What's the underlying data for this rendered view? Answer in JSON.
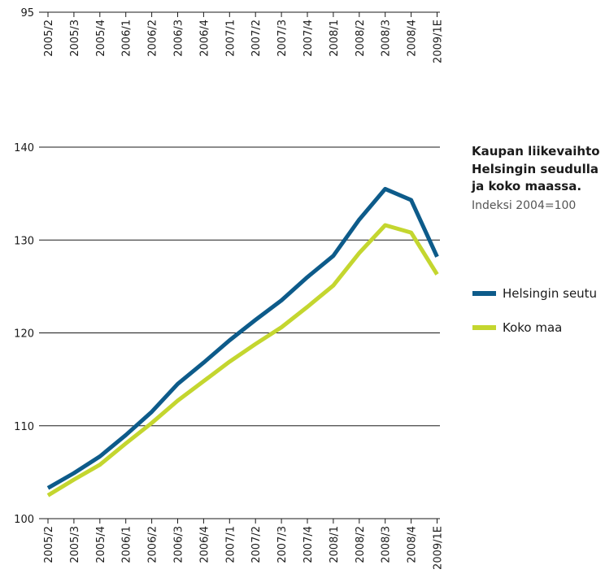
{
  "colors": {
    "helsinki": "#0d5b8a",
    "koko_maa": "#c4d62f",
    "grid": "#1a1a1a"
  },
  "top_axis": {
    "value_label": "95",
    "categories": [
      "2005/2",
      "2005/3",
      "2005/4",
      "2006/1",
      "2006/2",
      "2006/3",
      "2006/4",
      "2007/1",
      "2007/2",
      "2007/3",
      "2007/4",
      "2008/1",
      "2008/2",
      "2008/3",
      "2008/4",
      "2009/1E"
    ]
  },
  "chart_data": {
    "type": "line",
    "title": "Kaupan liikevaihto Helsingin seudulla ja koko maassa.",
    "subtitle": "Indeksi 2004=100",
    "categories": [
      "2005/2",
      "2005/3",
      "2005/4",
      "2006/1",
      "2006/2",
      "2006/3",
      "2006/4",
      "2007/1",
      "2007/2",
      "2007/3",
      "2007/4",
      "2008/1",
      "2008/2",
      "2008/3",
      "2008/4",
      "2009/1E"
    ],
    "series": [
      {
        "name": "Helsingin seutu",
        "color": "#0d5b8a",
        "values": [
          103.3,
          104.9,
          106.7,
          109.0,
          111.5,
          114.5,
          116.8,
          119.2,
          121.4,
          123.5,
          126.0,
          128.3,
          132.2,
          135.5,
          134.3,
          128.2
        ]
      },
      {
        "name": "Koko maa",
        "color": "#c4d62f",
        "values": [
          102.5,
          104.2,
          105.8,
          108.1,
          110.3,
          112.7,
          114.8,
          116.9,
          118.8,
          120.6,
          122.8,
          125.1,
          128.6,
          131.6,
          130.8,
          126.3
        ]
      }
    ],
    "ylim": [
      100,
      140
    ],
    "yticks": [
      100,
      110,
      120,
      130,
      140
    ],
    "grid": true,
    "legend_position": "right"
  }
}
